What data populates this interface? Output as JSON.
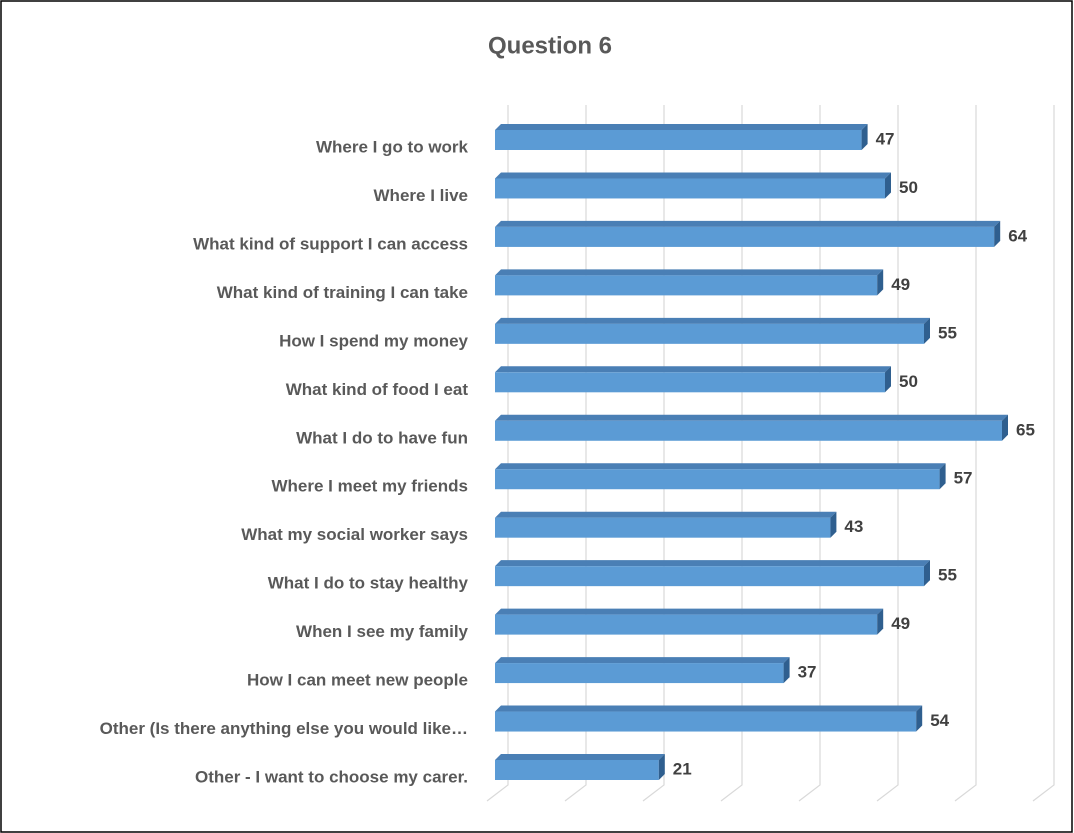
{
  "chart_data": {
    "type": "bar3d_horizontal",
    "title": "Question 6",
    "categories": [
      "Where I go to work",
      "Where I live",
      "What kind of support I can access",
      "What kind of training I can take",
      "How I spend my money",
      "What kind of food I eat",
      "What I do to have fun",
      "Where I meet my friends",
      "What my social worker says",
      "What I do to stay healthy",
      "When I see my family",
      "How I can meet new people",
      "Other (Is there anything else you would like…",
      "Other - I want to choose my carer."
    ],
    "values": [
      47,
      50,
      64,
      49,
      55,
      50,
      65,
      57,
      43,
      55,
      49,
      37,
      54,
      21
    ],
    "color": "#5b9bd5",
    "xlim": [
      0,
      70
    ],
    "xticks": [
      0,
      10,
      20,
      30,
      40,
      50,
      60,
      70
    ],
    "grid": true
  }
}
